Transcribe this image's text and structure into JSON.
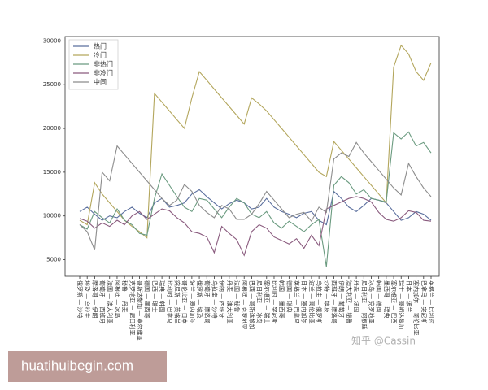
{
  "chart_data": {
    "type": "line",
    "categories": [
      "俄罗斯 — 沙特",
      "埃及 — 乌拉圭",
      "摩洛哥 — 伊朗",
      "葡萄牙 — 西班牙",
      "法国 — 澳大利亚",
      "阿根廷 — 冰岛",
      "秘鲁 — 丹麦",
      "克罗地亚 — 尼日利亚",
      "哥斯达黎加 — 塞尔维亚",
      "德国 — 墨西哥",
      "巴西 — 瑞士",
      "瑞典 — 韩国",
      "比利时 — 巴拿马",
      "突尼斯 — 英格兰",
      "哥伦比亚 — 日本",
      "波兰 — 塞内加尔",
      "俄罗斯 — 埃及",
      "葡萄牙 — 摩洛哥",
      "乌拉圭 — 沙特",
      "伊朗 — 西班牙",
      "丹麦 — 澳大利亚",
      "法国 — 秘鲁",
      "阿根廷 — 克罗地亚",
      "巴西 — 哥斯达黎加",
      "尼日利亚 — 冰岛",
      "塞尔维亚 — 瑞士",
      "比利时 — 突尼斯",
      "韩国 — 墨西哥",
      "德国 — 瑞典",
      "英格兰 — 巴拿马",
      "日本 — 塞内加尔",
      "波兰 — 哥伦比亚",
      "乌拉圭 — 俄罗斯",
      "沙特 — 埃及",
      "西班牙 — 摩洛哥",
      "伊朗 — 葡萄牙",
      "澳大利亚 — 秘鲁",
      "丹麦 — 法国",
      "尼日利亚 — 阿根廷",
      "冰岛 — 克罗地亚",
      "韩国 — 德国",
      "墨西哥 — 瑞典",
      "塞尔维亚 — 巴西",
      "瑞士 — 哥斯达黎加",
      "日本 — 波兰",
      "塞内加尔 — 哥伦比亚",
      "巴拿马 — 突尼斯",
      "英格兰 — 比利时"
    ],
    "series": [
      {
        "name": "热门",
        "color": "#5b6f9e",
        "values": [
          10500,
          11000,
          10200,
          9500,
          10000,
          9800,
          10500,
          11000,
          10300,
          9800,
          11500,
          12000,
          11000,
          11200,
          11500,
          12500,
          13000,
          12200,
          11500,
          10800,
          11400,
          11800,
          11500,
          10800,
          11000,
          12000,
          11000,
          10500,
          10200,
          9800,
          10300,
          10500,
          9500,
          9000,
          12800,
          12000,
          11000,
          10500,
          11200,
          12000,
          11800,
          11500,
          10500,
          9500,
          9800,
          10500,
          10200,
          9500
        ]
      },
      {
        "name": "冷门",
        "color": "#b3a65c",
        "values": [
          9500,
          9000,
          13800,
          12500,
          11500,
          10500,
          9500,
          8800,
          8200,
          7500,
          24000,
          23000,
          22000,
          21000,
          20000,
          23500,
          26500,
          25500,
          24500,
          23500,
          22500,
          21500,
          20500,
          23500,
          22800,
          22000,
          21000,
          20000,
          19000,
          18000,
          17000,
          16000,
          15000,
          14500,
          18500,
          17500,
          16500,
          15500,
          14500,
          13500,
          12500,
          11500,
          27000,
          29500,
          28500,
          26500,
          25500,
          27500
        ]
      },
      {
        "name": "非热门",
        "color": "#6b9b80",
        "values": [
          9000,
          8500,
          10500,
          9800,
          9200,
          10800,
          9500,
          9000,
          8000,
          7800,
          12000,
          14800,
          13500,
          12200,
          11000,
          10500,
          12000,
          11800,
          10800,
          9800,
          11000,
          12000,
          11500,
          10200,
          9800,
          10500,
          9200,
          8600,
          9400,
          8800,
          8200,
          9000,
          9600,
          4200,
          13500,
          14500,
          13800,
          12500,
          13000,
          12000,
          11800,
          11600,
          19500,
          18800,
          19600,
          18000,
          18400,
          17200
        ]
      },
      {
        "name": "非冷门",
        "color": "#8a5b7e",
        "values": [
          9700,
          9400,
          8600,
          9200,
          8800,
          9500,
          9000,
          10000,
          10500,
          9600,
          10200,
          10800,
          10600,
          9800,
          9200,
          8200,
          8000,
          7600,
          5800,
          8800,
          8000,
          7300,
          5500,
          8200,
          9000,
          8600,
          7600,
          7200,
          6800,
          7400,
          6300,
          7800,
          6600,
          10800,
          11200,
          11600,
          12000,
          12200,
          12000,
          11600,
          10400,
          9600,
          9400,
          9800,
          10600,
          10400,
          9500,
          9400
        ]
      },
      {
        "name": "中间",
        "color": "#8c8c8c",
        "values": [
          9000,
          8200,
          6100,
          15000,
          14000,
          18000,
          17000,
          16000,
          15000,
          14000,
          13000,
          12000,
          11200,
          11800,
          13600,
          12800,
          11200,
          10400,
          9800,
          11200,
          10800,
          9600,
          9600,
          10200,
          11400,
          12800,
          11800,
          10800,
          9800,
          10200,
          10400,
          9400,
          11000,
          10400,
          16500,
          17200,
          16800,
          18400,
          17200,
          16200,
          15200,
          14200,
          13200,
          12400,
          16000,
          14500,
          13200,
          12200
        ]
      }
    ],
    "ylim": [
      3100,
      30500
    ],
    "yticks": [
      5000,
      10000,
      15000,
      20000,
      25000,
      30000
    ],
    "legend": "upper left"
  },
  "watermarks": [
    "知乎 @Cassin",
    "huatihuibegin.com"
  ]
}
